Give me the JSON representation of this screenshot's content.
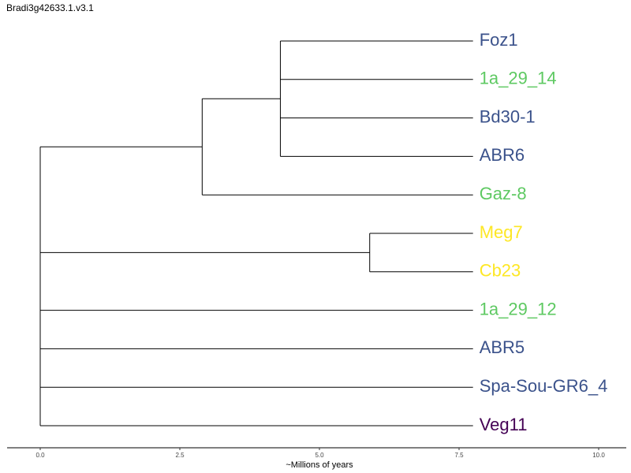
{
  "title": "Bradi3g42633.1.v3.1",
  "x_axis": {
    "label": "~Millions of years",
    "min": 0,
    "max": 10,
    "ticks": [
      {
        "value": 0,
        "label": "0.0"
      },
      {
        "value": 2.5,
        "label": "2.5"
      },
      {
        "value": 5,
        "label": "5.0"
      },
      {
        "value": 7.5,
        "label": "7.5"
      },
      {
        "value": 10,
        "label": "10.0"
      }
    ]
  },
  "tree": {
    "depth": 7.75,
    "leaves": [
      {
        "id": "Foz1",
        "label": "Foz1",
        "color": "#3b528b"
      },
      {
        "id": "1a_29_14",
        "label": "1a_29_14",
        "color": "#5ec962"
      },
      {
        "id": "Bd30-1",
        "label": "Bd30-1",
        "color": "#3b528b"
      },
      {
        "id": "ABR6",
        "label": "ABR6",
        "color": "#3b528b"
      },
      {
        "id": "Gaz-8",
        "label": "Gaz-8",
        "color": "#5ec962"
      },
      {
        "id": "Meg7",
        "label": "Meg7",
        "color": "#fde725"
      },
      {
        "id": "Cb23",
        "label": "Cb23",
        "color": "#fde725"
      },
      {
        "id": "1a_29_12",
        "label": "1a_29_12",
        "color": "#5ec962"
      },
      {
        "id": "ABR5",
        "label": "ABR5",
        "color": "#3b528b"
      },
      {
        "id": "Spa-Sou-GR6_4",
        "label": "Spa-Sou-GR6_4",
        "color": "#3b528b"
      },
      {
        "id": "Veg11",
        "label": "Veg11",
        "color": "#440154"
      }
    ],
    "nodes": [
      {
        "id": "root",
        "age": 0,
        "children": [
          "cladeA",
          "cladeMeg",
          "1a_29_12",
          "ABR5",
          "Spa-Sou-GR6_4",
          "Veg11"
        ]
      },
      {
        "id": "cladeA",
        "age": 2.9,
        "children": [
          "cladeFoz",
          "Gaz-8"
        ]
      },
      {
        "id": "cladeFoz",
        "age": 4.3,
        "children": [
          "Foz1",
          "1a_29_14",
          "Bd30-1",
          "ABR6"
        ]
      },
      {
        "id": "cladeMeg",
        "age": 5.9,
        "children": [
          "Meg7",
          "Cb23"
        ]
      }
    ]
  }
}
